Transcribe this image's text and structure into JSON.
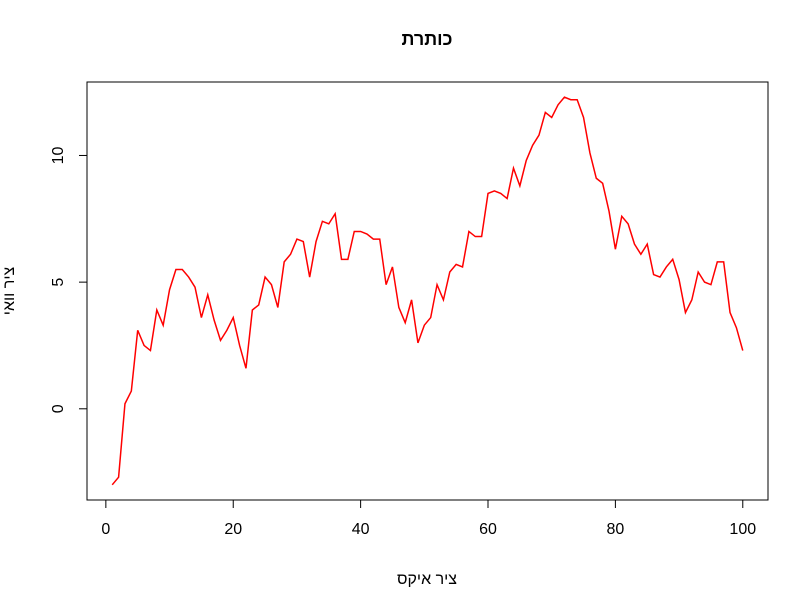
{
  "chart_data": {
    "type": "line",
    "title": "כותרת",
    "xlabel": "ציר איקס",
    "ylabel": "ציר וואי",
    "x": [
      1,
      2,
      3,
      4,
      5,
      6,
      7,
      8,
      9,
      10,
      11,
      12,
      13,
      14,
      15,
      16,
      17,
      18,
      19,
      20,
      21,
      22,
      23,
      24,
      25,
      26,
      27,
      28,
      29,
      30,
      31,
      32,
      33,
      34,
      35,
      36,
      37,
      38,
      39,
      40,
      41,
      42,
      43,
      44,
      45,
      46,
      47,
      48,
      49,
      50,
      51,
      52,
      53,
      54,
      55,
      56,
      57,
      58,
      59,
      60,
      61,
      62,
      63,
      64,
      65,
      66,
      67,
      68,
      69,
      70,
      71,
      72,
      73,
      74,
      75,
      76,
      77,
      78,
      79,
      80,
      81,
      82,
      83,
      84,
      85,
      86,
      87,
      88,
      89,
      90,
      91,
      92,
      93,
      94,
      95,
      96,
      97,
      98,
      99,
      100
    ],
    "series": [
      {
        "name": "y",
        "color": "#ff0000",
        "values": [
          -3.0,
          -2.7,
          0.2,
          0.7,
          3.1,
          2.5,
          2.3,
          3.9,
          3.3,
          4.7,
          5.5,
          5.5,
          5.2,
          4.8,
          3.6,
          4.5,
          3.5,
          2.7,
          3.1,
          3.6,
          2.5,
          1.6,
          3.9,
          4.1,
          5.2,
          4.9,
          4.0,
          5.8,
          6.1,
          6.7,
          6.6,
          5.2,
          6.6,
          7.4,
          7.3,
          7.7,
          5.9,
          5.9,
          7.0,
          7.0,
          6.9,
          6.7,
          6.7,
          4.9,
          5.6,
          4.0,
          3.4,
          4.3,
          2.6,
          3.3,
          3.6,
          4.9,
          4.3,
          5.4,
          5.7,
          5.6,
          7.0,
          6.8,
          6.8,
          8.5,
          8.6,
          8.5,
          8.3,
          9.5,
          8.8,
          9.8,
          10.4,
          10.8,
          11.7,
          11.5,
          12.0,
          12.3,
          12.2,
          12.2,
          11.5,
          10.1,
          9.1,
          8.9,
          7.8,
          6.3,
          7.6,
          7.3,
          6.5,
          6.1,
          6.5,
          5.3,
          5.2,
          5.6,
          5.9,
          5.1,
          3.8,
          4.3,
          5.4,
          5.0,
          4.9,
          5.8,
          5.8,
          3.8,
          3.2,
          2.3
        ]
      }
    ],
    "xlim": [
      -2.96,
      103.96
    ],
    "xticks": [
      0,
      20,
      40,
      60,
      80,
      100
    ],
    "ylim": [
      -3.6,
      12.9
    ],
    "yticks": [
      0,
      5,
      10
    ]
  }
}
